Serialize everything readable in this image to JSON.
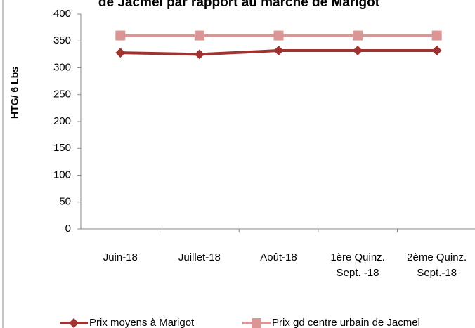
{
  "chart_data": {
    "type": "line",
    "title": "de Jacmel par rapport au marché de Marigot",
    "y_label": "HTG/ 6 Lbs",
    "categories": [
      "Juin-18",
      "Juillet-18",
      "Août-18",
      "1ère Quinz. Sept. -18",
      "2ème Quinz. Sept.-18"
    ],
    "series": [
      {
        "name": "Prix moyens à Marigot",
        "color": "#A0322F",
        "marker": "diamond",
        "values": [
          328,
          325,
          332,
          332,
          332
        ]
      },
      {
        "name": "Prix gd centre urbain de Jacmel",
        "color": "#D99694",
        "marker": "square",
        "values": [
          360,
          360,
          360,
          360,
          360
        ]
      }
    ],
    "ylim": [
      0,
      400
    ],
    "yticks": [
      0,
      50,
      100,
      150,
      200,
      250,
      300,
      350,
      400
    ],
    "grid": false
  }
}
